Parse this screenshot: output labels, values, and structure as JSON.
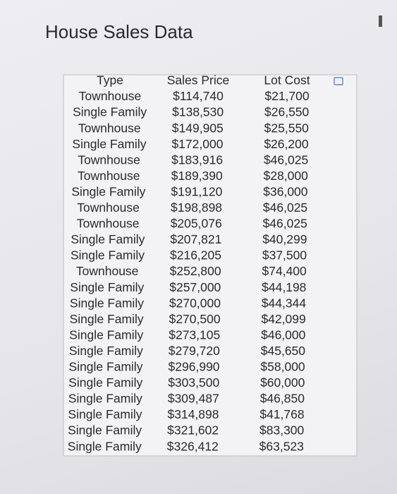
{
  "header": {
    "title": "House Sales Data"
  },
  "table": {
    "columns": [
      "Type",
      "Sales Price",
      "Lot Cost"
    ],
    "rows": [
      [
        "Townhouse",
        "$114,740",
        "$21,700"
      ],
      [
        "Single Family",
        "$138,530",
        "$26,550"
      ],
      [
        "Townhouse",
        "$149,905",
        "$25,550"
      ],
      [
        "Single Family",
        "$172,000",
        "$26,200"
      ],
      [
        "Townhouse",
        "$183,916",
        "$46,025"
      ],
      [
        "Townhouse",
        "$189,390",
        "$28,000"
      ],
      [
        "Single Family",
        "$191,120",
        "$36,000"
      ],
      [
        "Townhouse",
        "$198,898",
        "$46,025"
      ],
      [
        "Townhouse",
        "$205,076",
        "$46,025"
      ],
      [
        "Single Family",
        "$207,821",
        "$40,299"
      ],
      [
        "Single Family",
        "$216,205",
        "$37,500"
      ],
      [
        "Townhouse",
        "$252,800",
        "$74,400"
      ],
      [
        "Single Family",
        "$257,000",
        "$44,198"
      ],
      [
        "Single Family",
        "$270,000",
        "$44,344"
      ],
      [
        "Single Family",
        "$270,500",
        "$42,099"
      ],
      [
        "Single Family",
        "$273,105",
        "$46,000"
      ],
      [
        "Single Family",
        "$279,720",
        "$45,650"
      ],
      [
        "Single Family",
        "$296,990",
        "$58,000"
      ],
      [
        "Single Family",
        "$303,500",
        "$60,000"
      ],
      [
        "Single Family",
        "$309,487",
        "$46,850"
      ],
      [
        "Single Family",
        "$314,898",
        "$41,768"
      ],
      [
        "Single Family",
        "$321,602",
        "$83,300"
      ],
      [
        "Single Family",
        "$326,412",
        "$63,523"
      ]
    ]
  }
}
